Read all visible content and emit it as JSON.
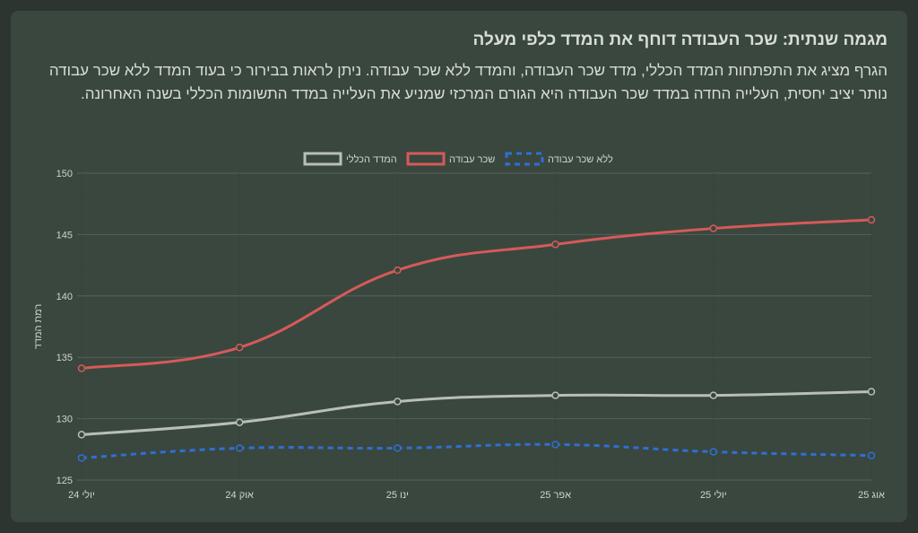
{
  "title": "מגמה שנתית: שכר העבודה דוחף את המדד כלפי מעלה",
  "description": "הגרף מציג את התפתחות המדד הכללי, מדד שכר העבודה, והמדד ללא שכר עבודה. ניתן לראות בבירור כי בעוד המדד ללא שכר עבודה נותר יציב יחסית, העלייה החדה במדד שכר העבודה היא הגורם המרכזי שמניע את העלייה במדד התשומות הכללי בשנה האחרונה.",
  "chart_data": {
    "type": "line",
    "categories": [
      "יולי 24",
      "אוק 24",
      "ינו 25",
      "אפר 25",
      "יולי 25",
      "אוג 25"
    ],
    "ylabel": "רמת המדד",
    "ylim": [
      125,
      150
    ],
    "yticks": [
      "125",
      "130",
      "135",
      "140",
      "145",
      "150"
    ],
    "grid": true,
    "legend_position": "top",
    "series": [
      {
        "name": "המדד הכללי",
        "color": "#b9beb9",
        "dashed": false,
        "values": [
          128.7,
          129.7,
          131.4,
          131.9,
          131.9,
          132.2
        ]
      },
      {
        "name": "שכר עבודה",
        "color": "#d55a5a",
        "dashed": false,
        "values": [
          134.1,
          135.8,
          142.1,
          144.2,
          145.5,
          146.2
        ]
      },
      {
        "name": "ללא שכר עבודה",
        "color": "#2f6fd6",
        "dashed": true,
        "values": [
          126.8,
          127.6,
          127.6,
          127.9,
          127.3,
          127.0
        ]
      }
    ]
  }
}
